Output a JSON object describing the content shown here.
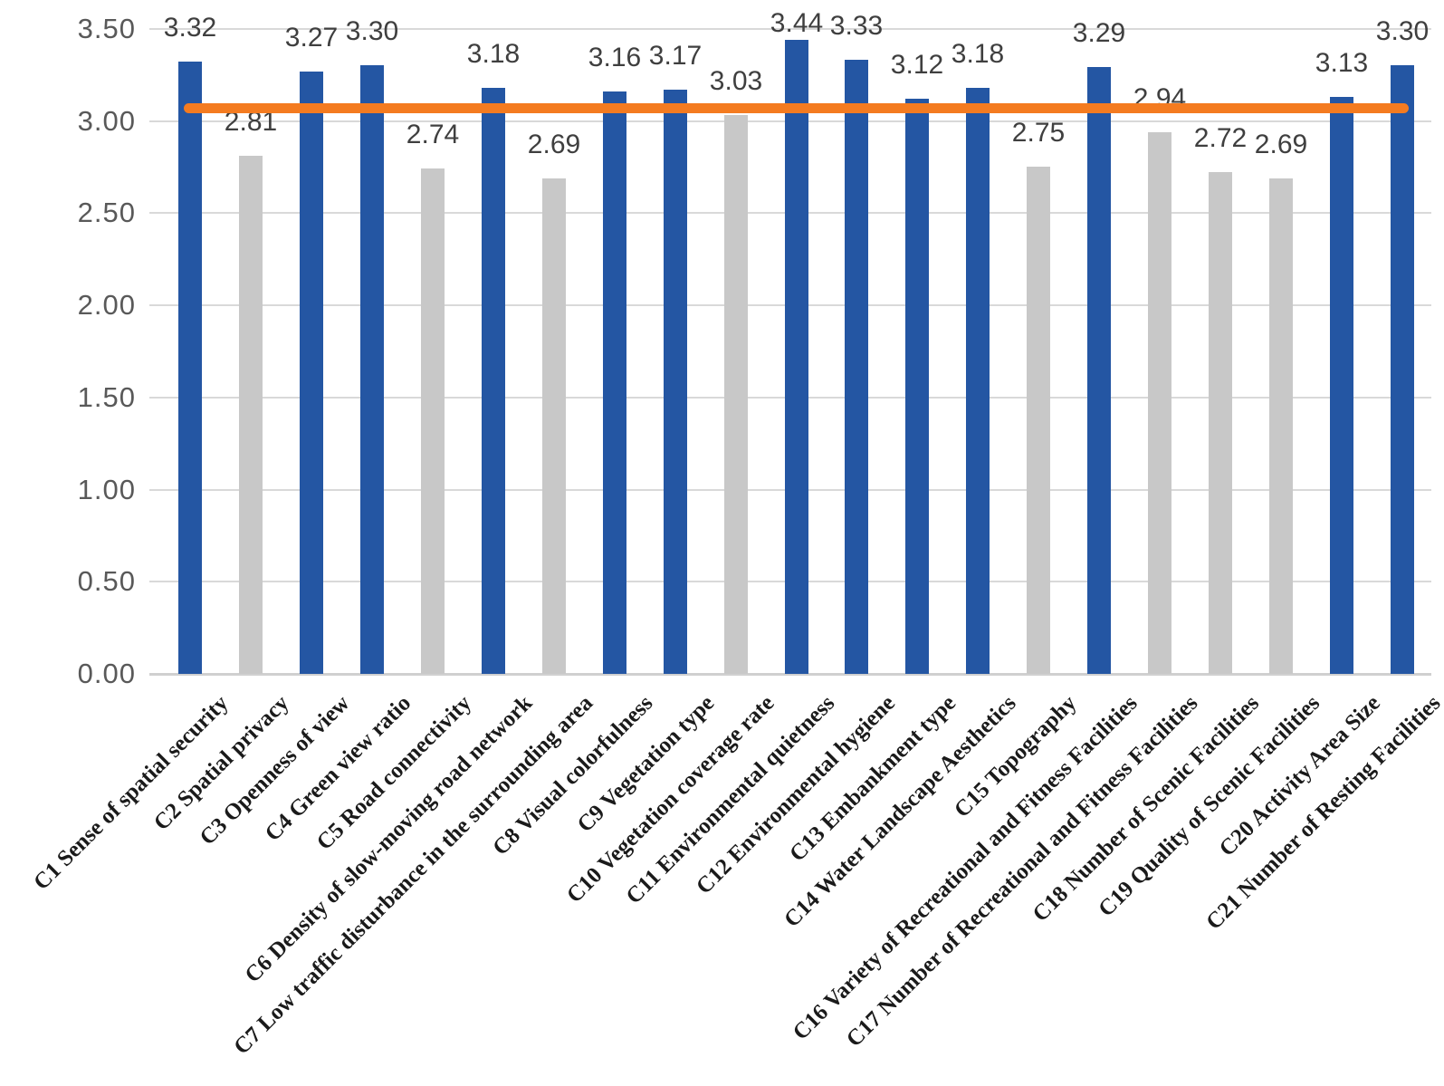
{
  "chart_data": {
    "type": "bar",
    "title": "",
    "xlabel": "",
    "ylabel": "",
    "categories": [
      "C1 Sense of spatial security",
      "C2 Spatial privacy",
      "C3 Openness of view",
      "C4 Green view ratio",
      "C5 Road connectivity",
      "C6 Density of slow-moving road network",
      "C7 Low traffic disturbance in the surrounding area",
      "C8 Visual colorfulness",
      "C9 Vegetation type",
      "C10 Vegetation coverage rate",
      "C11 Environmental quietness",
      "C12 Environmental hygiene",
      "C13 Embankment type",
      "C14 Water Landscape Aesthetics",
      "C15 Topography",
      "C16 Variety of Recreational and Fitness Facilities",
      "C17 Number of Recreational and Fitness Facilities",
      "C18 Number of Scenic Facilities",
      "C19 Quality of Scenic Facilities",
      "C20 Activity Area Size",
      "C21 Number of Resting Facilities"
    ],
    "values": [
      3.32,
      2.81,
      3.27,
      3.3,
      2.74,
      3.18,
      2.69,
      3.16,
      3.17,
      3.03,
      3.44,
      3.33,
      3.12,
      3.18,
      2.75,
      3.29,
      2.94,
      2.72,
      2.69,
      3.13,
      3.3
    ],
    "value_label_decimals": 2,
    "mean_line_value": 3.07,
    "ylim": [
      0,
      3.5
    ],
    "ytick_step": 0.5,
    "ytick_labels": [
      "0.00",
      "0.50",
      "1.00",
      "1.50",
      "2.00",
      "2.50",
      "3.00",
      "3.50"
    ],
    "grid": "horizontal",
    "legend": "none",
    "colors": {
      "bar_above_mean": "#2456A3",
      "bar_below_mean": "#C8C8C8",
      "mean_line": "#F47B20",
      "gridline": "#D9D9D9",
      "axis_line": "#D0D0D0",
      "tick_label": "#595959",
      "value_label": "#3F3F3F",
      "category_label": "#1A1A1A"
    }
  }
}
